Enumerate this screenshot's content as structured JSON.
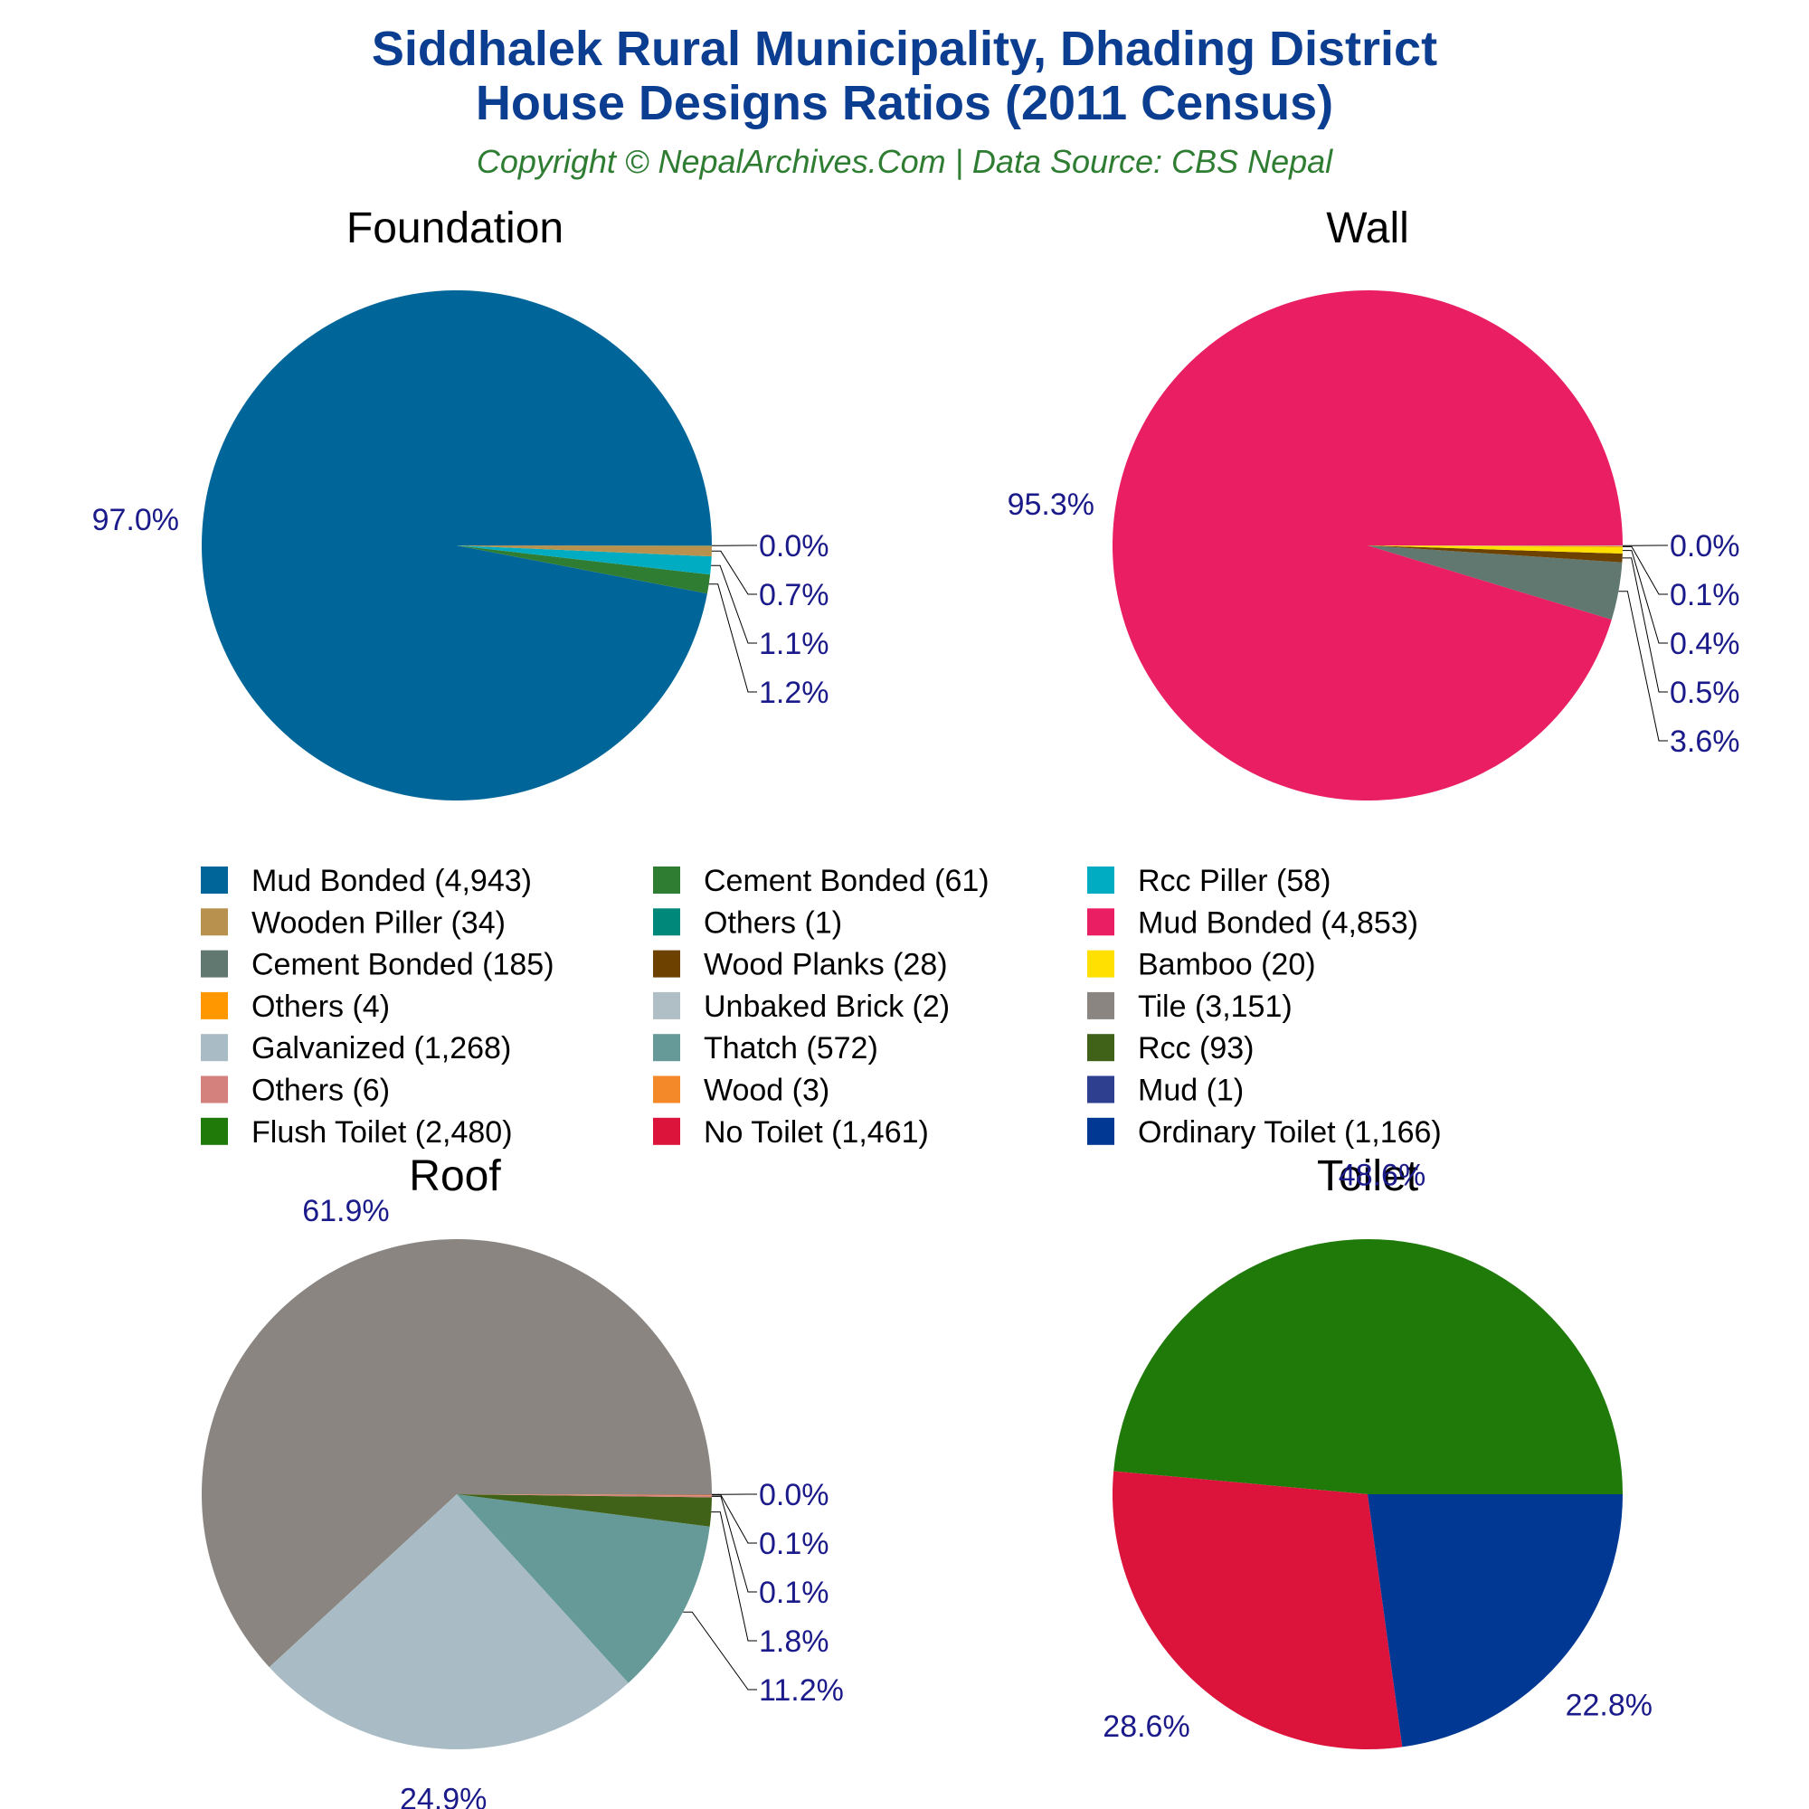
{
  "header": {
    "title_line1": "Siddhalek Rural Municipality, Dhading District",
    "title_line2": "House Designs Ratios (2011 Census)",
    "subtitle": "Copyright © NepalArchives.Com | Data Source: CBS Nepal"
  },
  "chart_data": [
    {
      "type": "pie",
      "title": "Foundation",
      "slices": [
        {
          "label": "Mud Bonded",
          "value": 4943,
          "pct_label": "97.0%",
          "color": "#006699"
        },
        {
          "label": "Cement Bonded",
          "value": 61,
          "pct_label": "1.2%",
          "color": "#2e7d32"
        },
        {
          "label": "Rcc Piller",
          "value": 58,
          "pct_label": "1.1%",
          "color": "#00acc1"
        },
        {
          "label": "Wooden Piller",
          "value": 34,
          "pct_label": "0.7%",
          "color": "#b8914f"
        },
        {
          "label": "Others",
          "value": 1,
          "pct_label": "0.0%",
          "color": "#00897b"
        }
      ]
    },
    {
      "type": "pie",
      "title": "Wall",
      "slices": [
        {
          "label": "Mud Bonded",
          "value": 4853,
          "pct_label": "95.3%",
          "color": "#e91e63"
        },
        {
          "label": "Cement Bonded",
          "value": 185,
          "pct_label": "3.6%",
          "color": "#607870"
        },
        {
          "label": "Wood Planks",
          "value": 28,
          "pct_label": "0.5%",
          "color": "#6d4100"
        },
        {
          "label": "Bamboo",
          "value": 20,
          "pct_label": "0.4%",
          "color": "#ffe000"
        },
        {
          "label": "Others",
          "value": 4,
          "pct_label": "0.1%",
          "color": "#ff9800"
        },
        {
          "label": "Unbaked Brick",
          "value": 2,
          "pct_label": "0.0%",
          "color": "#b0bec5"
        }
      ]
    },
    {
      "type": "pie",
      "title": "Roof",
      "slices": [
        {
          "label": "Tile",
          "value": 3151,
          "pct_label": "61.9%",
          "color": "#8a8580"
        },
        {
          "label": "Galvanized",
          "value": 1268,
          "pct_label": "24.9%",
          "color": "#a9bcc5"
        },
        {
          "label": "Thatch",
          "value": 572,
          "pct_label": "11.2%",
          "color": "#659a98"
        },
        {
          "label": "Rcc",
          "value": 93,
          "pct_label": "1.8%",
          "color": "#3f6218"
        },
        {
          "label": "Others",
          "value": 6,
          "pct_label": "0.1%",
          "color": "#d4817d"
        },
        {
          "label": "Wood",
          "value": 3,
          "pct_label": "0.1%",
          "color": "#f4892a"
        },
        {
          "label": "Mud",
          "value": 1,
          "pct_label": "0.0%",
          "color": "#2e3f8f"
        }
      ]
    },
    {
      "type": "pie",
      "title": "Toilet",
      "slices": [
        {
          "label": "Flush Toilet",
          "value": 2480,
          "pct_label": "48.6%",
          "color": "#1f7a0a"
        },
        {
          "label": "No Toilet",
          "value": 1461,
          "pct_label": "28.6%",
          "color": "#dc143c"
        },
        {
          "label": "Ordinary Toilet",
          "value": 1166,
          "pct_label": "22.8%",
          "color": "#003893"
        }
      ]
    }
  ],
  "legend": [
    {
      "text": "Mud Bonded (4,943)",
      "color": "#006699"
    },
    {
      "text": "Cement Bonded (61)",
      "color": "#2e7d32"
    },
    {
      "text": "Rcc Piller (58)",
      "color": "#00acc1"
    },
    {
      "text": "Wooden Piller (34)",
      "color": "#b8914f"
    },
    {
      "text": "Others (1)",
      "color": "#00897b"
    },
    {
      "text": "Mud Bonded (4,853)",
      "color": "#e91e63"
    },
    {
      "text": "Cement Bonded (185)",
      "color": "#607870"
    },
    {
      "text": "Wood Planks (28)",
      "color": "#6d4100"
    },
    {
      "text": "Bamboo (20)",
      "color": "#ffe000"
    },
    {
      "text": "Others (4)",
      "color": "#ff9800"
    },
    {
      "text": "Unbaked Brick (2)",
      "color": "#b0bec5"
    },
    {
      "text": "Tile (3,151)",
      "color": "#8a8580"
    },
    {
      "text": "Galvanized (1,268)",
      "color": "#a9bcc5"
    },
    {
      "text": "Thatch (572)",
      "color": "#659a98"
    },
    {
      "text": "Rcc (93)",
      "color": "#3f6218"
    },
    {
      "text": "Others (6)",
      "color": "#d4817d"
    },
    {
      "text": "Wood (3)",
      "color": "#f4892a"
    },
    {
      "text": "Mud (1)",
      "color": "#2e3f8f"
    },
    {
      "text": "Flush Toilet (2,480)",
      "color": "#1f7a0a"
    },
    {
      "text": "No Toilet (1,461)",
      "color": "#dc143c"
    },
    {
      "text": "Ordinary Toilet (1,166)",
      "color": "#003893"
    }
  ]
}
